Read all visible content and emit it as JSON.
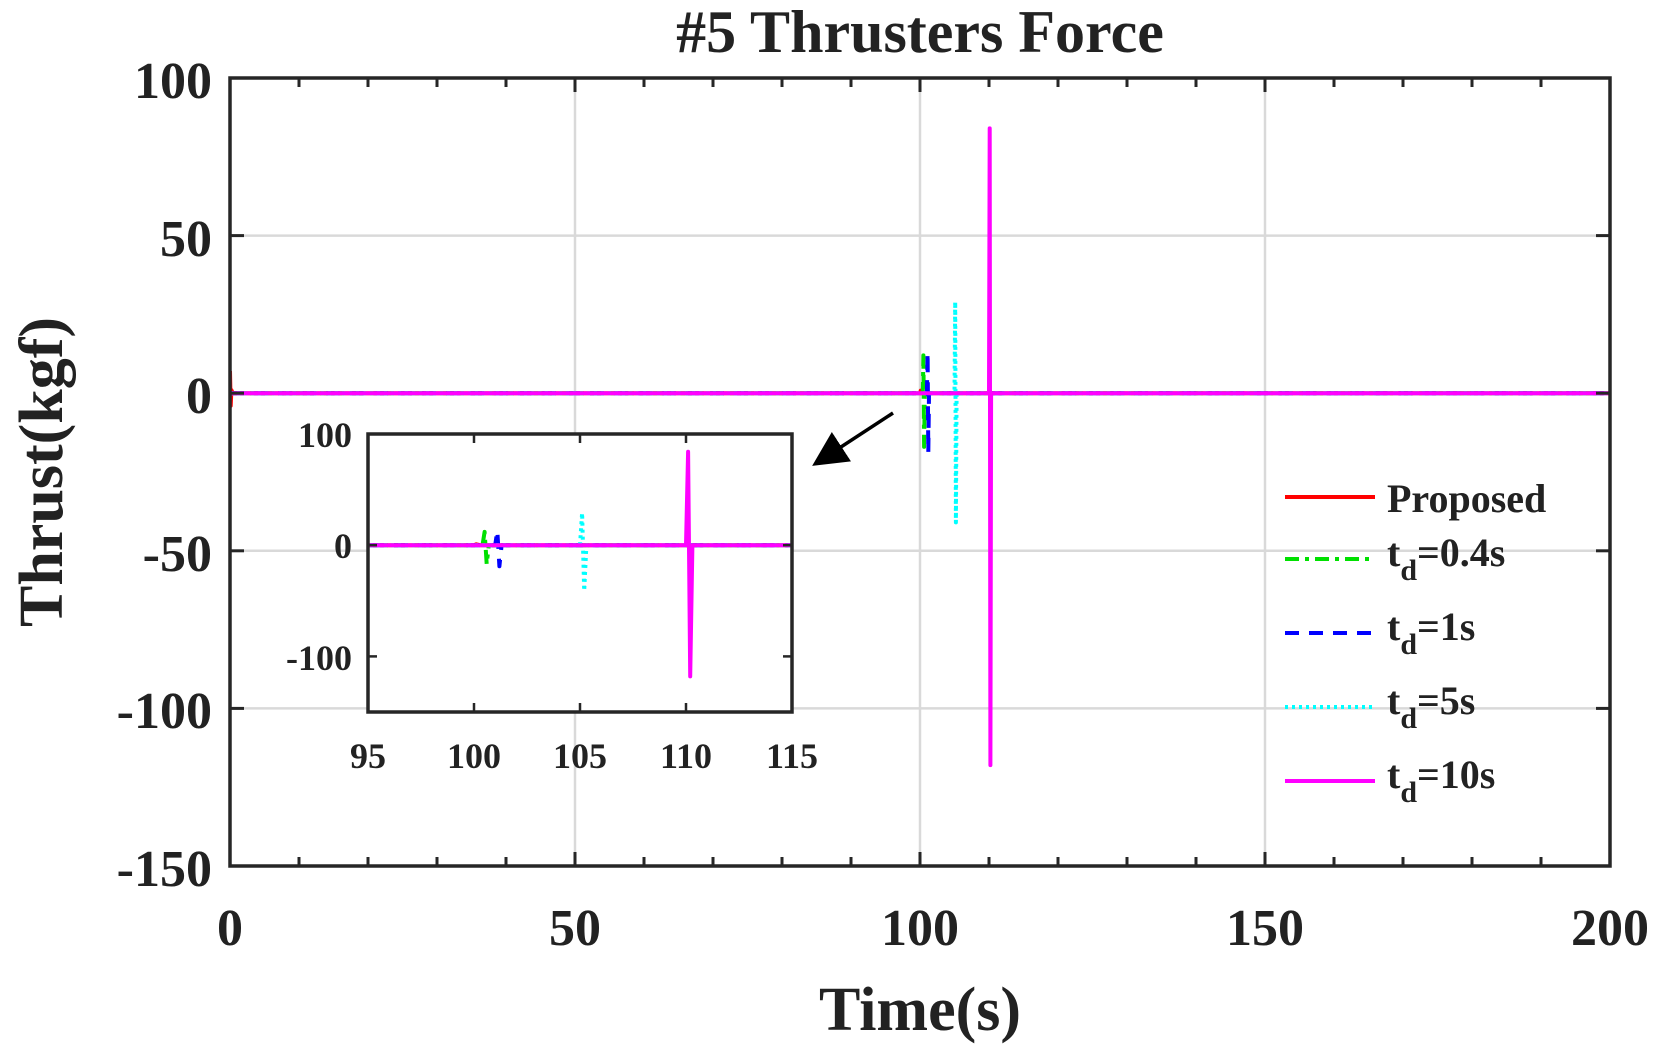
{
  "chart_data": {
    "type": "line",
    "title": "#5 Thrusters Force",
    "xlabel": "Time(s)",
    "ylabel": "Thrust(kgf)",
    "xlim": [
      0,
      200
    ],
    "ylim": [
      -150,
      100
    ],
    "xticks": [
      "0",
      "50",
      "100",
      "150",
      "200"
    ],
    "yticks": [
      "100",
      "50",
      "0",
      "-50",
      "-100",
      "-150"
    ],
    "grid": true,
    "legend_position": "right, below center",
    "series": [
      {
        "name": "Proposed",
        "legend_main": "Proposed",
        "legend_sub": "",
        "legend_tail": "",
        "color": "#ff0000",
        "dash": "",
        "x": [
          0,
          0.1,
          0.2,
          0.4,
          100,
          100.1,
          100.3,
          200
        ],
        "y": [
          7,
          -4,
          1,
          0,
          0,
          0.8,
          0,
          0
        ]
      },
      {
        "name": "t_d=0.4s",
        "legend_main": "t",
        "legend_sub": "d",
        "legend_tail": "=0.4s",
        "color": "#00e000",
        "dash": "14,6,4,6",
        "x": [
          0,
          100.4,
          100.5,
          100.6,
          100.7,
          200
        ],
        "y": [
          0,
          0,
          12,
          -17,
          0,
          0
        ]
      },
      {
        "name": "t_d=1s",
        "legend_main": "t",
        "legend_sub": "d",
        "legend_tail": "=1s",
        "color": "#0000ff",
        "dash": "14,10",
        "x": [
          0,
          101,
          101.1,
          101.2,
          101.3,
          200
        ],
        "y": [
          0,
          0,
          13,
          -19,
          0,
          0
        ]
      },
      {
        "name": "t_d=5s",
        "legend_main": "t",
        "legend_sub": "d",
        "legend_tail": "=5s",
        "color": "#00ffff",
        "dash": "3,4",
        "x": [
          0,
          105,
          105.1,
          105.2,
          105.3,
          200
        ],
        "y": [
          0,
          0,
          29,
          -41,
          0,
          0
        ]
      },
      {
        "name": "t_d=10s",
        "legend_main": "t",
        "legend_sub": "d",
        "legend_tail": "=10s",
        "color": "#ff00ff",
        "dash": "",
        "x": [
          0,
          110,
          110.1,
          110.2,
          110.3,
          200
        ],
        "y": [
          0,
          0,
          84,
          -118,
          0,
          0
        ]
      }
    ],
    "inset": {
      "xlim": [
        95,
        115
      ],
      "ylim": [
        -150,
        100
      ],
      "xticks": [
        "95",
        "100",
        "105",
        "110",
        "115"
      ],
      "yticks": [
        "100",
        "0",
        "-100"
      ]
    }
  }
}
